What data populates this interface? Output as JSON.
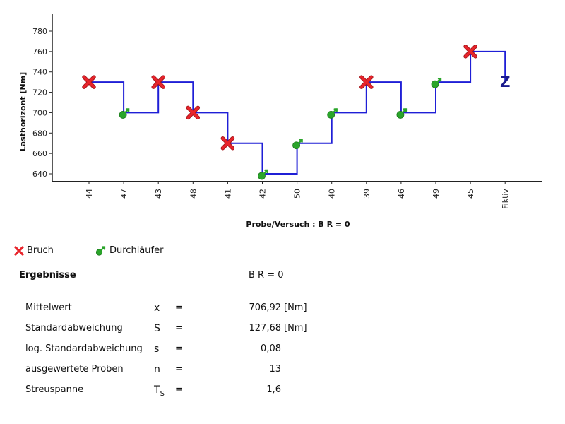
{
  "chart_data": {
    "type": "line",
    "title": "",
    "xlabel": "Probe/Versuch : B R = 0",
    "ylabel": "Lasthorizont [Nm]",
    "ylim": [
      630,
      790
    ],
    "yticks": [
      640,
      660,
      680,
      700,
      720,
      740,
      760,
      780
    ],
    "grid": false,
    "categories": [
      "44",
      "47",
      "43",
      "48",
      "41",
      "42",
      "50",
      "40",
      "39",
      "46",
      "49",
      "45",
      "Fiktiv"
    ],
    "values": [
      730,
      700,
      730,
      700,
      670,
      640,
      670,
      700,
      730,
      700,
      730,
      760,
      730
    ],
    "markers": [
      "Bruch",
      "Durchläufer",
      "Bruch",
      "Bruch",
      "Bruch",
      "Durchläufer",
      "Durchläufer",
      "Durchläufer",
      "Bruch",
      "Durchläufer",
      "Durchläufer",
      "Bruch",
      "Z"
    ],
    "line_style": "step",
    "line_color": "#1f1fd6",
    "legend_position": "bottom-left"
  },
  "colors": {
    "bruch": "#e8242b",
    "durchlaeufer": "#2aa52a",
    "line": "#1f1fd6"
  },
  "legend": {
    "bruch": {
      "label": "Bruch",
      "icon": "red-x-icon"
    },
    "durchlaeufer": {
      "label": "Durchläufer",
      "icon": "green-runout-icon"
    }
  },
  "results": {
    "title": "Ergebnisse",
    "header": "B R = 0",
    "rows": [
      {
        "label": "Mittelwert",
        "symbol": "x",
        "eq": "=",
        "value": "706,92",
        "unit": "[Nm]"
      },
      {
        "label": "Standardabweichung",
        "symbol": "S",
        "eq": "=",
        "value": "127,68",
        "unit": "[Nm]"
      },
      {
        "label": "log. Standardabweichung",
        "symbol": "s",
        "eq": "=",
        "value": "0,08",
        "unit": ""
      },
      {
        "label": "ausgewertete Proben",
        "symbol": "n",
        "eq": "=",
        "value": "13",
        "unit": ""
      },
      {
        "label": "Streuspanne",
        "symbol": "T",
        "symbol_sub": "S",
        "eq": "=",
        "value": "1,6",
        "unit": ""
      }
    ]
  }
}
